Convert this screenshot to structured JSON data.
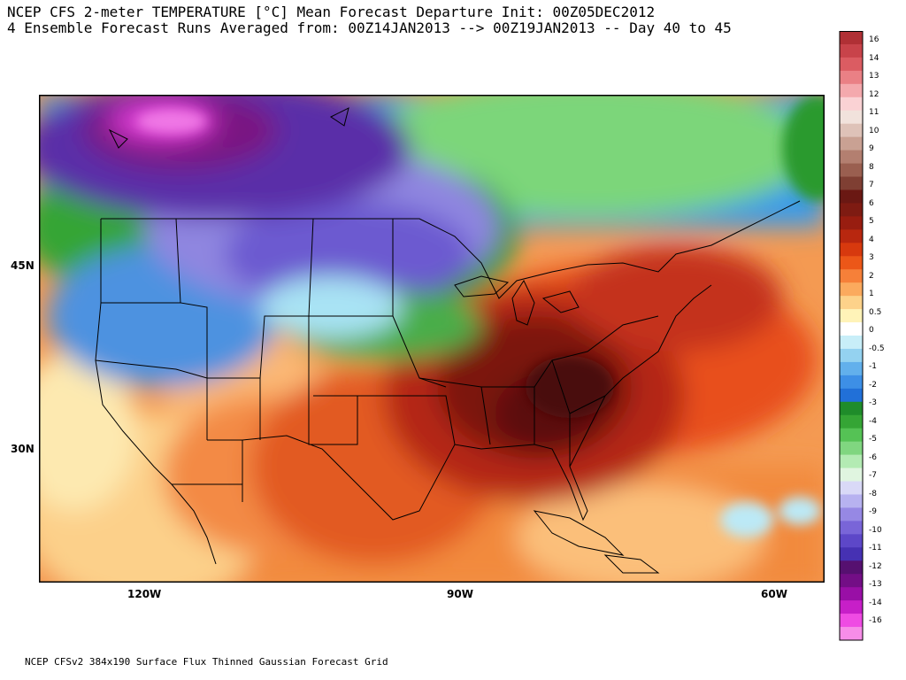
{
  "title": {
    "line1": "NCEP CFS 2-meter TEMPERATURE [°C] Mean Forecast Departure Init: 00Z05DEC2012",
    "line2": "4 Ensemble Forecast Runs Averaged from: 00Z14JAN2013 --> 00Z19JAN2013 -- Day 40 to 45"
  },
  "footer": "NCEP CFSv2 384x190 Surface Flux Thinned Gaussian Forecast Grid",
  "axes": {
    "lat_labels": [
      "45N",
      "30N"
    ],
    "lon_labels": [
      "120W",
      "90W",
      "60W"
    ]
  },
  "colorbar": {
    "labels": [
      "16",
      "14",
      "13",
      "12",
      "11",
      "10",
      "9",
      "8",
      "7",
      "6",
      "5",
      "4",
      "3",
      "2",
      "1",
      "0.5",
      "0",
      "-0.5",
      "-1",
      "-2",
      "-3",
      "-4",
      "-5",
      "-6",
      "-7",
      "-8",
      "-9",
      "-10",
      "-11",
      "-12",
      "-13",
      "-14",
      "-16"
    ],
    "colors": [
      "#b03035",
      "#c8434a",
      "#db5c62",
      "#ea8085",
      "#f4a9ad",
      "#fad2d4",
      "#f1e2dc",
      "#dec2b8",
      "#c9a193",
      "#b37f70",
      "#9a5f50",
      "#7f3f33",
      "#6a1813",
      "#7e1b12",
      "#981d10",
      "#b8270f",
      "#d7390e",
      "#ec5718",
      "#f68039",
      "#fbaa5e",
      "#fdd28a",
      "#fff3b8",
      "#ffffff",
      "#c8eef8",
      "#94d2f0",
      "#62b0ec",
      "#3d8fe6",
      "#2170d8",
      "#1f8c2a",
      "#35a535",
      "#55c255",
      "#80d680",
      "#b3ebb3",
      "#e0f5e0",
      "#d9d9f7",
      "#b7b2f0",
      "#9688e4",
      "#7965d8",
      "#5d47c8",
      "#4631b3",
      "#561070",
      "#730e86",
      "#990fa6",
      "#c71fc8",
      "#ef4be3",
      "#f78de8"
    ]
  }
}
